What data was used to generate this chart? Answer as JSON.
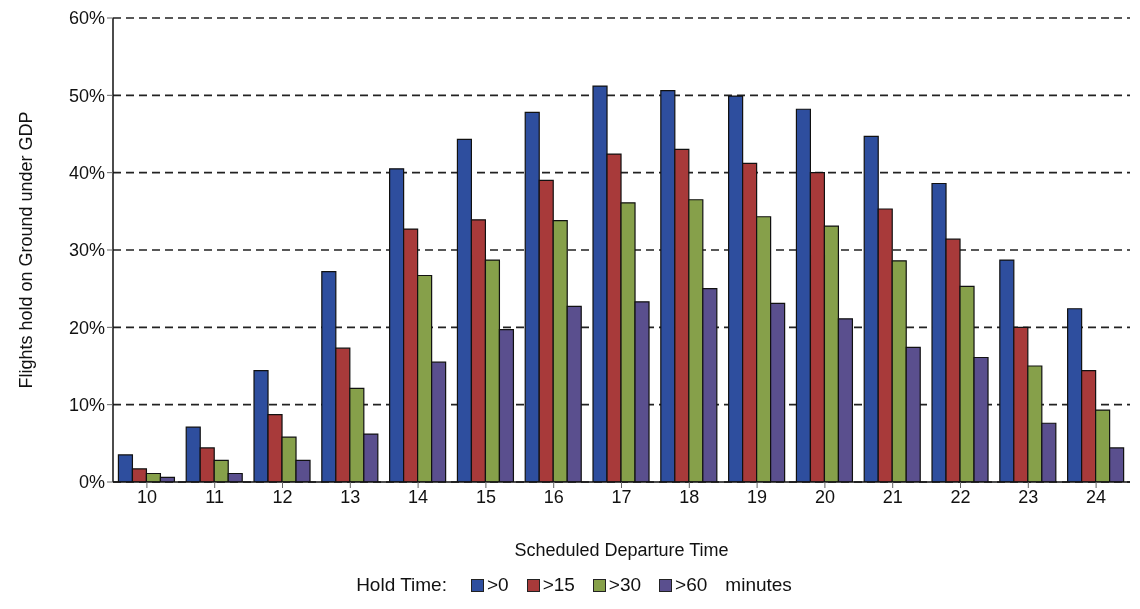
{
  "chart_data": {
    "type": "bar",
    "xlabel": "Scheduled Departure Time",
    "ylabel": "Flights hold on Ground under GDP",
    "legend_title": "Hold Time:",
    "annotations": [
      "minutes"
    ],
    "categories": [
      "10",
      "11",
      "12",
      "13",
      "14",
      "15",
      "16",
      "17",
      "18",
      "19",
      "20",
      "21",
      "22",
      "23",
      "24"
    ],
    "series": [
      {
        "name": ">0",
        "color": "#2e4e9e",
        "values": [
          3.5,
          7.1,
          14.4,
          27.2,
          40.5,
          44.3,
          47.8,
          51.2,
          50.6,
          49.9,
          48.2,
          44.7,
          38.6,
          28.7,
          22.4
        ]
      },
      {
        "name": ">15",
        "color": "#a83a3a",
        "values": [
          1.7,
          4.4,
          8.7,
          17.3,
          32.7,
          33.9,
          39.0,
          42.4,
          43.0,
          41.2,
          40.0,
          35.3,
          31.4,
          20.0,
          14.4
        ]
      },
      {
        "name": ">30",
        "color": "#86a04a",
        "values": [
          1.1,
          2.8,
          5.8,
          12.1,
          26.7,
          28.7,
          33.8,
          36.1,
          36.5,
          34.3,
          33.1,
          28.6,
          25.3,
          15.0,
          9.3
        ]
      },
      {
        "name": ">60",
        "color": "#5a4f8e",
        "values": [
          0.6,
          1.1,
          2.8,
          6.2,
          15.5,
          19.7,
          22.7,
          23.3,
          25.0,
          23.1,
          21.1,
          17.4,
          16.1,
          7.6,
          4.4
        ]
      }
    ],
    "ylim": [
      0,
      60
    ],
    "yticks": [
      {
        "value": 0,
        "label": "0%"
      },
      {
        "value": 10,
        "label": "10%"
      },
      {
        "value": 20,
        "label": "20%"
      },
      {
        "value": 30,
        "label": "30%"
      },
      {
        "value": 40,
        "label": "40%"
      },
      {
        "value": 50,
        "label": "50%"
      },
      {
        "value": 60,
        "label": "60%"
      }
    ],
    "grid": "y",
    "legend": "bottom"
  }
}
